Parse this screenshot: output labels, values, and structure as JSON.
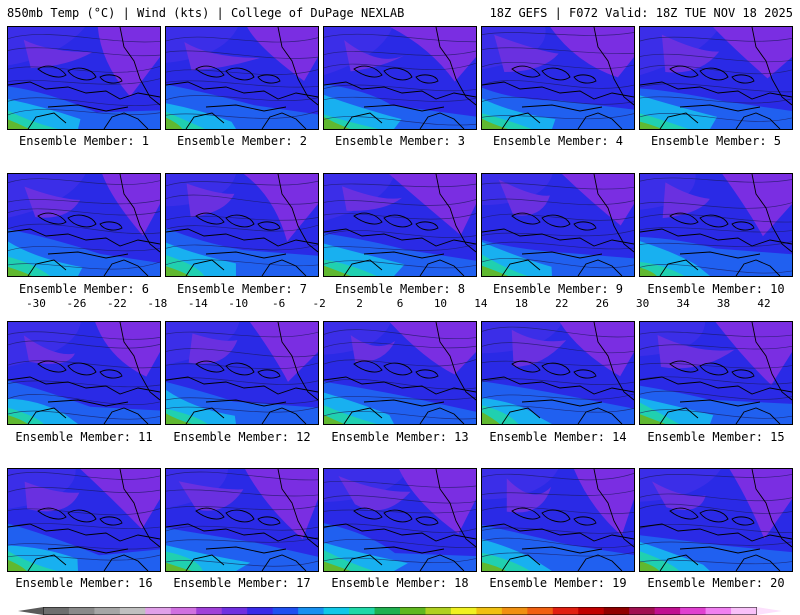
{
  "header": {
    "left": "850mb Temp (°C) | Wind (kts) | College of DuPage NEXLAB",
    "right": "18Z GEFS | F072 Valid: 18Z TUE NOV 18 2025"
  },
  "members": [
    "Ensemble Member: 1",
    "Ensemble Member: 2",
    "Ensemble Member: 3",
    "Ensemble Member: 4",
    "Ensemble Member: 5",
    "Ensemble Member: 6",
    "Ensemble Member: 7",
    "Ensemble Member: 8",
    "Ensemble Member: 9",
    "Ensemble Member: 10",
    "Ensemble Member: 11",
    "Ensemble Member: 12",
    "Ensemble Member: 13",
    "Ensemble Member: 14",
    "Ensemble Member: 15",
    "Ensemble Member: 16",
    "Ensemble Member: 17",
    "Ensemble Member: 18",
    "Ensemble Member: 19",
    "Ensemble Member: 20"
  ],
  "colorbar": {
    "labels": [
      "-30",
      "-26",
      "-22",
      "-18",
      "-14",
      "-10",
      "-6",
      "-2",
      "2",
      "6",
      "10",
      "14",
      "18",
      "22",
      "26",
      "30",
      "34",
      "38",
      "42"
    ],
    "colors": [
      "#6e6e6e",
      "#8a8a8a",
      "#a6a6a6",
      "#c0c0c0",
      "#e0a0e8",
      "#d070e0",
      "#a040d8",
      "#7030e0",
      "#3a2ae8",
      "#2050f0",
      "#1890f0",
      "#10c8e8",
      "#20d8a8",
      "#20b050",
      "#60b820",
      "#b0d020",
      "#f0f020",
      "#f0c010",
      "#f09010",
      "#f06010",
      "#e02010",
      "#c00000",
      "#900000",
      "#a01050",
      "#c01090",
      "#e040d0",
      "#f080f0",
      "#f8c0f8"
    ]
  }
}
